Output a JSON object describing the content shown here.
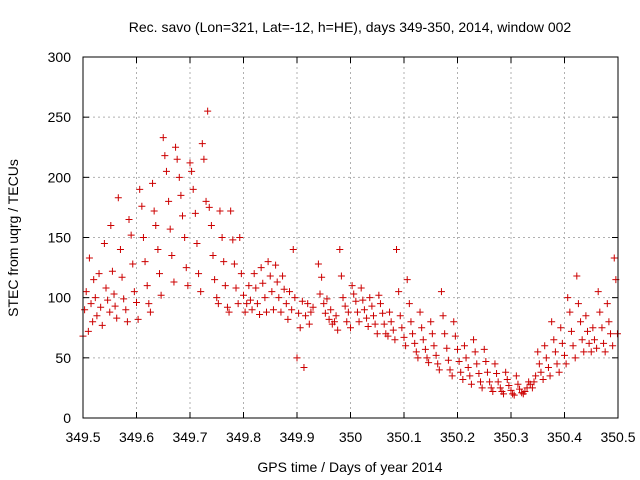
{
  "chart_data": {
    "type": "scatter",
    "title": "Rec. savo (Lon=321, Lat=-12, h=HE), days 349-350, 2014, window 002",
    "xlabel": "GPS time / Days of year 2014",
    "ylabel": "STEC from uqrg / TECUs",
    "xlim": [
      349.5,
      350.5
    ],
    "ylim": [
      0,
      300
    ],
    "xticks": [
      349.5,
      349.6,
      349.7,
      349.8,
      349.9,
      350.0,
      350.1,
      350.2,
      350.3,
      350.4,
      350.5
    ],
    "xtick_labels": [
      "349.5",
      "349.6",
      "349.7",
      "349.8",
      "349.9",
      "350",
      "350.1",
      "350.2",
      "350.3",
      "350.4",
      "350.5"
    ],
    "yticks": [
      0,
      50,
      100,
      150,
      200,
      250,
      300
    ],
    "ytick_labels": [
      "0",
      "50",
      "100",
      "150",
      "200",
      "250",
      "300"
    ],
    "grid": true,
    "marker": "+",
    "color": "#cc0000",
    "series": [
      {
        "name": "STEC",
        "points": [
          [
            349.5,
            68
          ],
          [
            349.503,
            90
          ],
          [
            349.506,
            105
          ],
          [
            349.51,
            72
          ],
          [
            349.512,
            133
          ],
          [
            349.515,
            95
          ],
          [
            349.518,
            80
          ],
          [
            349.52,
            115
          ],
          [
            349.523,
            100
          ],
          [
            349.526,
            85
          ],
          [
            349.53,
            120
          ],
          [
            349.533,
            92
          ],
          [
            349.536,
            77
          ],
          [
            349.54,
            145
          ],
          [
            349.543,
            108
          ],
          [
            349.546,
            98
          ],
          [
            349.55,
            88
          ],
          [
            349.552,
            160
          ],
          [
            349.555,
            122
          ],
          [
            349.558,
            103
          ],
          [
            349.56,
            93
          ],
          [
            349.563,
            83
          ],
          [
            349.566,
            183
          ],
          [
            349.57,
            140
          ],
          [
            349.573,
            117
          ],
          [
            349.576,
            99
          ],
          [
            349.58,
            90
          ],
          [
            349.583,
            80
          ],
          [
            349.586,
            165
          ],
          [
            349.59,
            152
          ],
          [
            349.593,
            128
          ],
          [
            349.596,
            105
          ],
          [
            349.6,
            96
          ],
          [
            349.603,
            82
          ],
          [
            349.606,
            190
          ],
          [
            349.61,
            176
          ],
          [
            349.613,
            150
          ],
          [
            349.616,
            130
          ],
          [
            349.62,
            110
          ],
          [
            349.623,
            95
          ],
          [
            349.626,
            88
          ],
          [
            349.63,
            195
          ],
          [
            349.633,
            172
          ],
          [
            349.636,
            160
          ],
          [
            349.64,
            140
          ],
          [
            349.643,
            120
          ],
          [
            349.646,
            102
          ],
          [
            349.65,
            233
          ],
          [
            349.653,
            218
          ],
          [
            349.656,
            205
          ],
          [
            349.66,
            180
          ],
          [
            349.663,
            157
          ],
          [
            349.666,
            135
          ],
          [
            349.67,
            113
          ],
          [
            349.673,
            225
          ],
          [
            349.676,
            215
          ],
          [
            349.68,
            200
          ],
          [
            349.683,
            185
          ],
          [
            349.686,
            168
          ],
          [
            349.69,
            150
          ],
          [
            349.693,
            125
          ],
          [
            349.696,
            110
          ],
          [
            349.7,
            212
          ],
          [
            349.703,
            205
          ],
          [
            349.706,
            190
          ],
          [
            349.71,
            170
          ],
          [
            349.713,
            145
          ],
          [
            349.716,
            120
          ],
          [
            349.72,
            105
          ],
          [
            349.723,
            228
          ],
          [
            349.726,
            215
          ],
          [
            349.73,
            180
          ],
          [
            349.733,
            255
          ],
          [
            349.736,
            175
          ],
          [
            349.74,
            160
          ],
          [
            349.743,
            135
          ],
          [
            349.746,
            115
          ],
          [
            349.75,
            100
          ],
          [
            349.753,
            95
          ],
          [
            349.756,
            172
          ],
          [
            349.76,
            150
          ],
          [
            349.763,
            130
          ],
          [
            349.766,
            110
          ],
          [
            349.77,
            92
          ],
          [
            349.773,
            88
          ],
          [
            349.776,
            172
          ],
          [
            349.78,
            148
          ],
          [
            349.783,
            128
          ],
          [
            349.786,
            108
          ],
          [
            349.79,
            95
          ],
          [
            349.793,
            150
          ],
          [
            349.796,
            120
          ],
          [
            349.8,
            102
          ],
          [
            349.803,
            88
          ],
          [
            349.806,
            95
          ],
          [
            349.81,
            110
          ],
          [
            349.813,
            98
          ],
          [
            349.816,
            90
          ],
          [
            349.82,
            120
          ],
          [
            349.823,
            108
          ],
          [
            349.826,
            95
          ],
          [
            349.83,
            86
          ],
          [
            349.833,
            125
          ],
          [
            349.836,
            112
          ],
          [
            349.84,
            100
          ],
          [
            349.843,
            88
          ],
          [
            349.846,
            130
          ],
          [
            349.85,
            118
          ],
          [
            349.853,
            105
          ],
          [
            349.856,
            90
          ],
          [
            349.86,
            127
          ],
          [
            349.863,
            113
          ],
          [
            349.866,
            100
          ],
          [
            349.87,
            88
          ],
          [
            349.873,
            118
          ],
          [
            349.876,
            107
          ],
          [
            349.88,
            95
          ],
          [
            349.883,
            82
          ],
          [
            349.886,
            105
          ],
          [
            349.89,
            90
          ],
          [
            349.893,
            140
          ],
          [
            349.896,
            100
          ],
          [
            349.9,
            50
          ],
          [
            349.903,
            87
          ],
          [
            349.906,
            75
          ],
          [
            349.91,
            97
          ],
          [
            349.913,
            42
          ],
          [
            349.916,
            85
          ],
          [
            349.92,
            95
          ],
          [
            349.923,
            78
          ],
          [
            349.926,
            88
          ],
          [
            349.93,
            92
          ],
          [
            349.94,
            128
          ],
          [
            349.943,
            103
          ],
          [
            349.946,
            117
          ],
          [
            349.95,
            95
          ],
          [
            349.953,
            87
          ],
          [
            349.956,
            99
          ],
          [
            349.96,
            82
          ],
          [
            349.963,
            90
          ],
          [
            349.966,
            78
          ],
          [
            349.97,
            80
          ],
          [
            349.973,
            85
          ],
          [
            349.976,
            73
          ],
          [
            349.98,
            140
          ],
          [
            349.983,
            118
          ],
          [
            349.986,
            100
          ],
          [
            349.99,
            93
          ],
          [
            349.993,
            80
          ],
          [
            349.996,
            88
          ],
          [
            350.0,
            75
          ],
          [
            350.003,
            110
          ],
          [
            350.006,
            103
          ],
          [
            350.01,
            97
          ],
          [
            350.013,
            88
          ],
          [
            350.016,
            80
          ],
          [
            350.02,
            108
          ],
          [
            350.023,
            98
          ],
          [
            350.026,
            90
          ],
          [
            350.03,
            83
          ],
          [
            350.033,
            76
          ],
          [
            350.036,
            100
          ],
          [
            350.04,
            93
          ],
          [
            350.043,
            85
          ],
          [
            350.046,
            78
          ],
          [
            350.05,
            70
          ],
          [
            350.053,
            102
          ],
          [
            350.056,
            95
          ],
          [
            350.06,
            87
          ],
          [
            350.063,
            78
          ],
          [
            350.066,
            70
          ],
          [
            350.07,
            68
          ],
          [
            350.073,
            88
          ],
          [
            350.076,
            80
          ],
          [
            350.08,
            73
          ],
          [
            350.083,
            65
          ],
          [
            350.086,
            140
          ],
          [
            350.09,
            105
          ],
          [
            350.093,
            85
          ],
          [
            350.096,
            75
          ],
          [
            350.1,
            67
          ],
          [
            350.103,
            60
          ],
          [
            350.106,
            115
          ],
          [
            350.11,
            95
          ],
          [
            350.113,
            80
          ],
          [
            350.116,
            70
          ],
          [
            350.12,
            62
          ],
          [
            350.123,
            55
          ],
          [
            350.126,
            50
          ],
          [
            350.13,
            88
          ],
          [
            350.133,
            75
          ],
          [
            350.136,
            65
          ],
          [
            350.14,
            57
          ],
          [
            350.143,
            50
          ],
          [
            350.146,
            46
          ],
          [
            350.15,
            80
          ],
          [
            350.153,
            70
          ],
          [
            350.156,
            60
          ],
          [
            350.16,
            52
          ],
          [
            350.163,
            45
          ],
          [
            350.166,
            40
          ],
          [
            350.17,
            105
          ],
          [
            350.173,
            85
          ],
          [
            350.176,
            70
          ],
          [
            350.18,
            58
          ],
          [
            350.183,
            48
          ],
          [
            350.186,
            40
          ],
          [
            350.19,
            35
          ],
          [
            350.193,
            80
          ],
          [
            350.196,
            68
          ],
          [
            350.2,
            57
          ],
          [
            350.203,
            47
          ],
          [
            350.206,
            38
          ],
          [
            350.21,
            32
          ],
          [
            350.213,
            60
          ],
          [
            350.216,
            50
          ],
          [
            350.22,
            42
          ],
          [
            350.223,
            35
          ],
          [
            350.226,
            28
          ],
          [
            350.23,
            65
          ],
          [
            350.233,
            55
          ],
          [
            350.236,
            45
          ],
          [
            350.24,
            37
          ],
          [
            350.243,
            30
          ],
          [
            350.246,
            25
          ],
          [
            350.25,
            57
          ],
          [
            350.253,
            47
          ],
          [
            350.256,
            38
          ],
          [
            350.26,
            30
          ],
          [
            350.263,
            25
          ],
          [
            350.266,
            22
          ],
          [
            350.27,
            45
          ],
          [
            350.273,
            37
          ],
          [
            350.276,
            30
          ],
          [
            350.28,
            25
          ],
          [
            350.283,
            22
          ],
          [
            350.286,
            20
          ],
          [
            350.29,
            38
          ],
          [
            350.293,
            32
          ],
          [
            350.296,
            27
          ],
          [
            350.3,
            23
          ],
          [
            350.303,
            20
          ],
          [
            350.306,
            19
          ],
          [
            350.31,
            35
          ],
          [
            350.313,
            28
          ],
          [
            350.316,
            24
          ],
          [
            350.32,
            21
          ],
          [
            350.323,
            20
          ],
          [
            350.326,
            22
          ],
          [
            350.33,
            25
          ],
          [
            350.333,
            30
          ],
          [
            350.336,
            28
          ],
          [
            350.34,
            25
          ],
          [
            350.343,
            30
          ],
          [
            350.346,
            35
          ],
          [
            350.35,
            55
          ],
          [
            350.353,
            45
          ],
          [
            350.356,
            38
          ],
          [
            350.36,
            32
          ],
          [
            350.363,
            60
          ],
          [
            350.366,
            50
          ],
          [
            350.37,
            42
          ],
          [
            350.373,
            35
          ],
          [
            350.376,
            80
          ],
          [
            350.38,
            65
          ],
          [
            350.383,
            55
          ],
          [
            350.386,
            45
          ],
          [
            350.39,
            38
          ],
          [
            350.393,
            75
          ],
          [
            350.396,
            62
          ],
          [
            350.4,
            52
          ],
          [
            350.403,
            45
          ],
          [
            350.406,
            100
          ],
          [
            350.41,
            88
          ],
          [
            350.413,
            72
          ],
          [
            350.416,
            60
          ],
          [
            350.42,
            50
          ],
          [
            350.423,
            118
          ],
          [
            350.426,
            95
          ],
          [
            350.43,
            80
          ],
          [
            350.433,
            65
          ],
          [
            350.436,
            55
          ],
          [
            350.44,
            85
          ],
          [
            350.443,
            72
          ],
          [
            350.446,
            62
          ],
          [
            350.45,
            55
          ],
          [
            350.453,
            75
          ],
          [
            350.456,
            65
          ],
          [
            350.46,
            58
          ],
          [
            350.463,
            105
          ],
          [
            350.466,
            88
          ],
          [
            350.47,
            75
          ],
          [
            350.473,
            62
          ],
          [
            350.476,
            55
          ],
          [
            350.48,
            95
          ],
          [
            350.483,
            80
          ],
          [
            350.486,
            70
          ],
          [
            350.49,
            60
          ],
          [
            350.493,
            133
          ],
          [
            350.496,
            115
          ],
          [
            350.499,
            70
          ]
        ]
      }
    ]
  }
}
